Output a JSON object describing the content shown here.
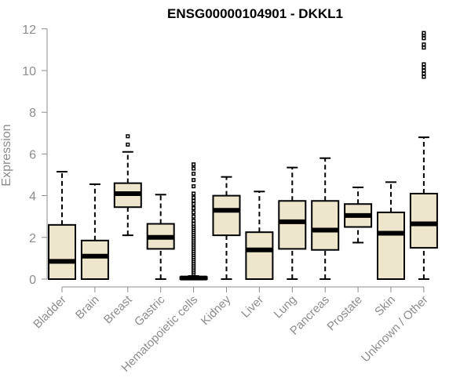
{
  "chart_data": {
    "type": "box",
    "title": "ENSG00000104901 - DKKL1",
    "xlabel": "",
    "ylabel": "Expression",
    "ylim": [
      0,
      12
    ],
    "yticks": [
      0,
      2,
      4,
      6,
      8,
      10,
      12
    ],
    "grid": false,
    "box_color": "#ede6cd",
    "categories": [
      "Bladder",
      "Brain",
      "Breast",
      "Gastric",
      "Hematopoietic cells",
      "Kidney",
      "Liver",
      "Lung",
      "Pancreas",
      "Prostate",
      "Skin",
      "Unknown / Other"
    ],
    "boxes": [
      {
        "whisker_low": 0,
        "q1": 0,
        "median": 0.85,
        "q3": 2.6,
        "whisker_high": 5.15,
        "outliers": []
      },
      {
        "whisker_low": 0,
        "q1": 0,
        "median": 1.1,
        "q3": 1.85,
        "whisker_high": 4.55,
        "outliers": []
      },
      {
        "whisker_low": 2.1,
        "q1": 3.45,
        "median": 4.1,
        "q3": 4.6,
        "whisker_high": 6.1,
        "outliers": [
          6.45,
          6.85
        ]
      },
      {
        "whisker_low": 0,
        "q1": 1.45,
        "median": 2.0,
        "q3": 2.65,
        "whisker_high": 4.05,
        "outliers": []
      },
      {
        "whisker_low": 0,
        "q1": 0,
        "median": 0.05,
        "q3": 0.1,
        "whisker_high": 0.15,
        "outliers": [
          0.25,
          0.35,
          0.45,
          0.55,
          0.65,
          0.75,
          0.85,
          0.95,
          1.05,
          1.15,
          1.25,
          1.35,
          1.45,
          1.55,
          1.65,
          1.75,
          1.85,
          1.95,
          2.05,
          2.15,
          2.25,
          2.35,
          2.45,
          2.55,
          2.65,
          2.8,
          3.0,
          3.2,
          3.4,
          3.6,
          3.75,
          3.9,
          4.1,
          4.45,
          4.75,
          5.05,
          5.3,
          5.5
        ]
      },
      {
        "whisker_low": 0,
        "q1": 2.1,
        "median": 3.3,
        "q3": 4.0,
        "whisker_high": 4.9,
        "outliers": []
      },
      {
        "whisker_low": 0,
        "q1": 0,
        "median": 1.4,
        "q3": 2.25,
        "whisker_high": 4.2,
        "outliers": []
      },
      {
        "whisker_low": 0,
        "q1": 1.45,
        "median": 2.75,
        "q3": 3.75,
        "whisker_high": 5.35,
        "outliers": []
      },
      {
        "whisker_low": 0,
        "q1": 1.4,
        "median": 2.35,
        "q3": 3.75,
        "whisker_high": 5.8,
        "outliers": []
      },
      {
        "whisker_low": 1.75,
        "q1": 2.5,
        "median": 3.05,
        "q3": 3.6,
        "whisker_high": 4.4,
        "outliers": []
      },
      {
        "whisker_low": 0,
        "q1": 0,
        "median": 2.2,
        "q3": 3.2,
        "whisker_high": 4.65,
        "outliers": []
      },
      {
        "whisker_low": 0,
        "q1": 1.5,
        "median": 2.65,
        "q3": 4.1,
        "whisker_high": 6.8,
        "outliers": [
          9.7,
          9.85,
          10.0,
          10.15,
          10.3,
          11.1,
          11.25,
          11.55,
          11.7,
          11.8
        ]
      }
    ]
  }
}
